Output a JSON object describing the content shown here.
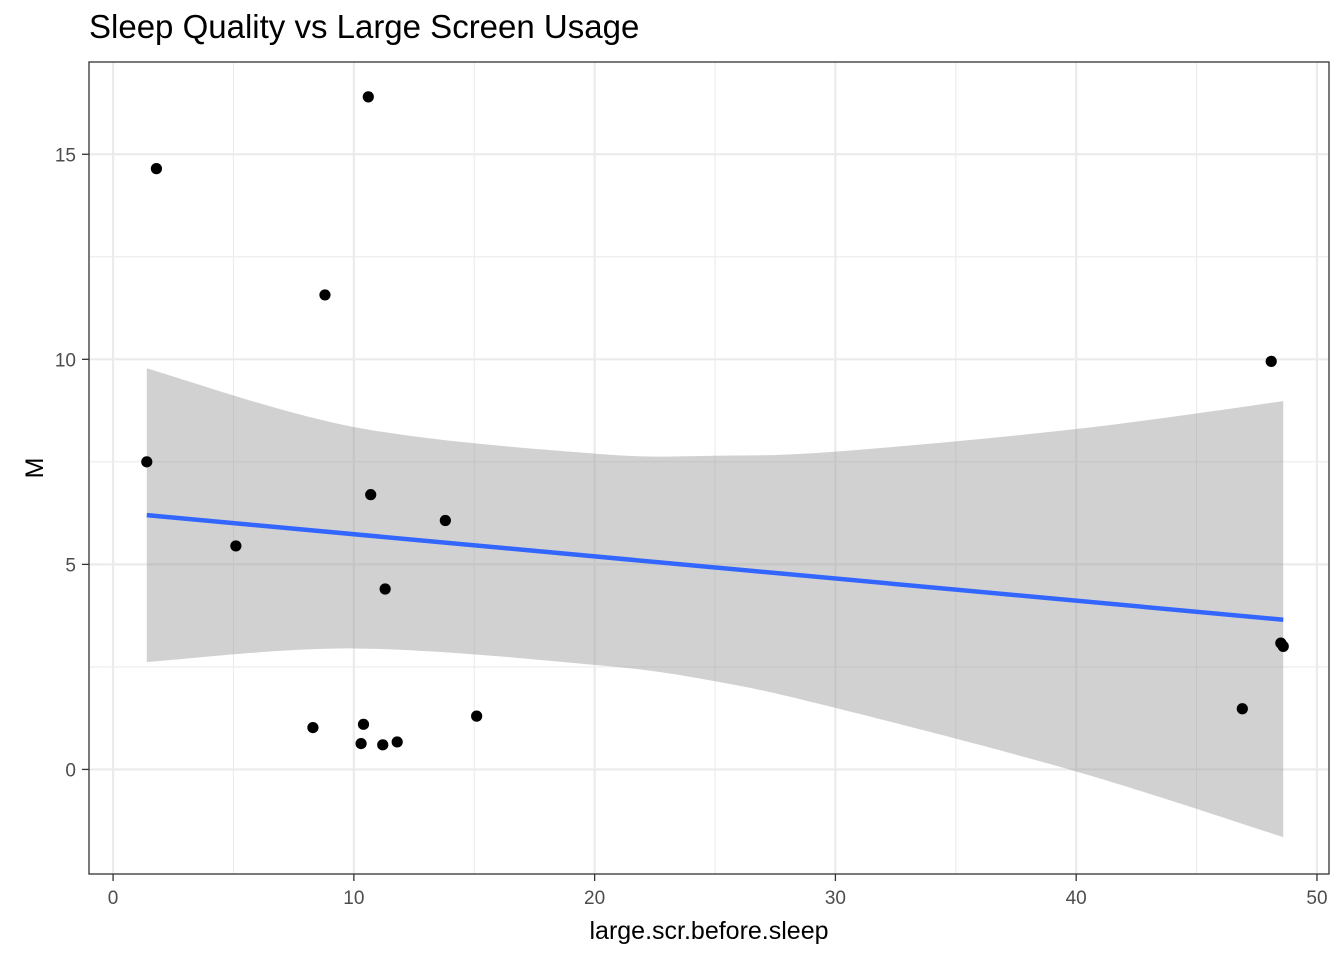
{
  "chart_data": {
    "type": "scatter",
    "title": "Sleep Quality vs Large Screen Usage",
    "xlabel": "large.scr.before.sleep",
    "ylabel": "M",
    "xlim": [
      -1,
      50.5
    ],
    "ylim": [
      -2.55,
      17.25
    ],
    "x_ticks": [
      0,
      10,
      20,
      30,
      40,
      50
    ],
    "y_ticks": [
      0,
      5,
      10,
      15
    ],
    "x_tick_labels": [
      "0",
      "10",
      "20",
      "30",
      "40",
      "50"
    ],
    "y_tick_labels": [
      "0",
      "5",
      "10",
      "15"
    ],
    "grid": true,
    "points": [
      {
        "x": 1.8,
        "y": 14.65
      },
      {
        "x": 10.6,
        "y": 16.4
      },
      {
        "x": 8.8,
        "y": 11.57
      },
      {
        "x": 48.1,
        "y": 9.95
      },
      {
        "x": 1.4,
        "y": 7.5
      },
      {
        "x": 10.7,
        "y": 6.7
      },
      {
        "x": 13.8,
        "y": 6.07
      },
      {
        "x": 5.1,
        "y": 5.45
      },
      {
        "x": 11.3,
        "y": 4.4
      },
      {
        "x": 48.5,
        "y": 3.08
      },
      {
        "x": 48.6,
        "y": 3.0
      },
      {
        "x": 46.9,
        "y": 1.48
      },
      {
        "x": 15.1,
        "y": 1.3
      },
      {
        "x": 10.4,
        "y": 1.1
      },
      {
        "x": 8.3,
        "y": 1.02
      },
      {
        "x": 10.3,
        "y": 0.63
      },
      {
        "x": 11.2,
        "y": 0.6
      },
      {
        "x": 11.8,
        "y": 0.67
      }
    ],
    "fit_line": {
      "x": [
        1.4,
        48.6
      ],
      "y": [
        6.2,
        3.65
      ],
      "color": "#3366ff"
    },
    "confidence_band": {
      "x": [
        1.4,
        10,
        20,
        25,
        30,
        40,
        48.6
      ],
      "upper": [
        9.78,
        8.35,
        7.7,
        7.65,
        7.75,
        8.3,
        8.98
      ],
      "lower": [
        2.62,
        2.95,
        2.55,
        2.15,
        1.5,
        -0.05,
        -1.65
      ],
      "color": "#999999"
    },
    "colors": {
      "points": "#000000",
      "panel_border": "#333333",
      "grid": "#ebebeb"
    }
  }
}
